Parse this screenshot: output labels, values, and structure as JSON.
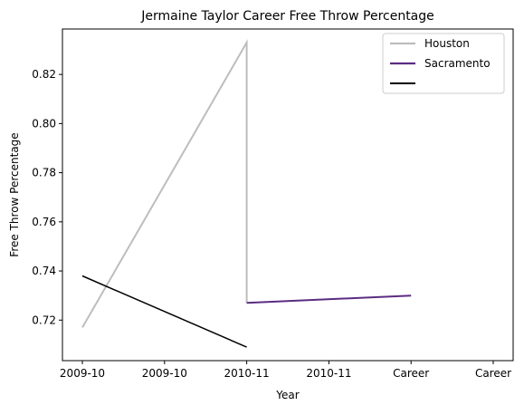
{
  "chart_data": {
    "type": "line",
    "title": "Jermaine Taylor  Career Free Throw Percentage",
    "xlabel": "Year",
    "ylabel": "Free Throw Percentage",
    "categories": [
      "2009-10",
      "2009-10",
      "2010-11",
      "2010-11",
      "Career",
      "Career"
    ],
    "ylim": [
      0.7035,
      0.8385
    ],
    "yticks": [
      0.72,
      0.74,
      0.76,
      0.78,
      0.8,
      0.82
    ],
    "ytick_labels": [
      "0.72",
      "0.74",
      "0.76",
      "0.78",
      "0.80",
      "0.82"
    ],
    "grid": false,
    "legend_position": "top-right",
    "series": [
      {
        "name": "Houston",
        "color": "#bdbdbd",
        "points": [
          [
            0,
            0.717
          ],
          [
            2,
            0.833
          ],
          [
            2,
            0.727
          ]
        ]
      },
      {
        "name": "Sacramento",
        "color": "#5a2d81",
        "points": [
          [
            2,
            0.727
          ],
          [
            4,
            0.73
          ]
        ]
      },
      {
        "name": "",
        "color": "#000000",
        "points": [
          [
            0,
            0.738
          ],
          [
            2,
            0.709
          ]
        ]
      }
    ]
  }
}
